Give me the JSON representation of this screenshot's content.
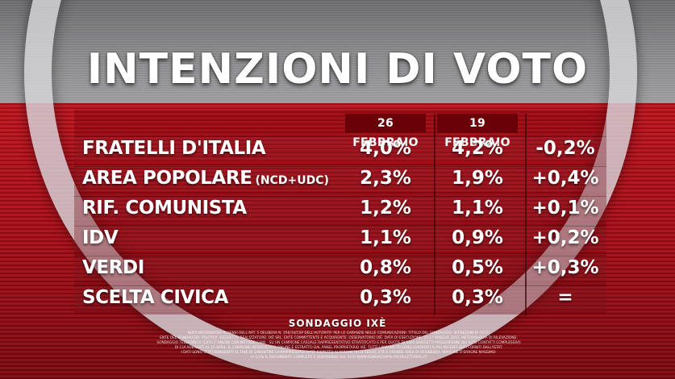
{
  "title": "INTENZIONI DI VOTO",
  "columns": [
    "26 FEBBRAIO",
    "19 FEBBRAIO"
  ],
  "source": "SONDAGGIO IXÈ",
  "fine_print": [
    "NOTA INFORMATIVA AI SENSI DELL'ART. 5 DELIBERA N. 256/10/CSP DELL'AUTORITA' PER LE GARANZIE NELLE COMUNICAZIONI. TITOLO DEL SONDAGGIO: INTENZIONI DI VOTO",
    "ENTE DEL SONDAGGIO: POLITICA. SOGGETTO REALIZZATORE: IXÈ SRL. ENTE COMMITTENTE E ACQUIRENTE: OSSERVATORIO IXÈ. DATA DI ESECUZIONE: 15-17 MAGGIO 2015. METODOLOGIA DI RILEVAZIONE:",
    "SONDAGGIO TELEFONICO (CATI) E ONLINE CON METODO CAWI - SU UN CAMPIONE CASUALE RAPPRESENTATIVO STRATIFICATO E PER QUOTE DI 1000 SOGGETTI MAGGIORENNI (SU 6250 CONTATTI COMPLESSIVI)",
    "DI CUI ADERENTI AL 15 APRIL. IL CAMPIONE INTERVISTATO ONLINE È ESTRATTO DAL PANEL PROPRIETARIO IXÈ. TUTTI I PARAMETRI SONO RIPORTATI AI PIÙ RECENTI DATI FORNITI DALL'ISTAT.",
    "I DATI SONO STATI PONDERATI AL FINE DI GARANTIRE LA RAPPRESENTATIVITÀ RISPETTO AI PARAMETRI DI SESSO, ETÀ E GRANDE AREA DI RESIDENZA. MARGINE D'ERRORE MASSIMO:",
    "+/-3,1% IL DOCUMENTO COMPLETO È DISPONIBILE SUL SITO WWW.SONDAGGIPOLITICOELETTORALI.IT"
  ],
  "chart_data": {
    "type": "table",
    "title": "INTENZIONI DI VOTO",
    "columns": [
      "26 FEBBRAIO",
      "19 FEBBRAIO",
      ""
    ],
    "rows": [
      {
        "party": "FRATELLI D'ITALIA",
        "note": "",
        "feb26": "4,0%",
        "feb19": "4,2%",
        "diff": "-0,2%"
      },
      {
        "party": "AREA POPOLARE",
        "note": "(NCD+UDC)",
        "feb26": "2,3%",
        "feb19": "1,9%",
        "diff": "+0,4%"
      },
      {
        "party": "RIF. COMUNISTA",
        "note": "",
        "feb26": "1,2%",
        "feb19": "1,1%",
        "diff": "+0,1%"
      },
      {
        "party": "IDV",
        "note": "",
        "feb26": "1,1%",
        "feb19": "0,9%",
        "diff": "+0,2%"
      },
      {
        "party": "VERDI",
        "note": "",
        "feb26": "0,8%",
        "feb19": "0,5%",
        "diff": "+0,3%"
      },
      {
        "party": "SCELTA CIVICA",
        "note": "",
        "feb26": "0,3%",
        "feb19": "0,3%",
        "diff": "="
      }
    ]
  }
}
